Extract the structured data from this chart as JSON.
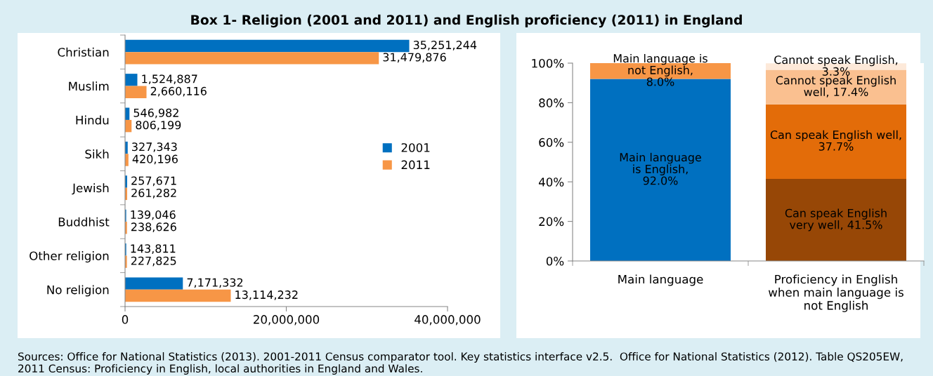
{
  "chart_data": [
    {
      "type": "bar",
      "orientation": "horizontal",
      "title": "Box 1- Religion (2001 and 2011) and English proficiency (2011) in England",
      "categories": [
        "Christian",
        "Muslim",
        "Hindu",
        "Sikh",
        "Jewish",
        "Buddhist",
        "Other religion",
        "No religion"
      ],
      "series": [
        {
          "name": "2001",
          "color": "#0070c0",
          "values": [
            35251244,
            1524887,
            546982,
            327343,
            257671,
            139046,
            143811,
            7171332
          ],
          "value_labels": [
            "35,251,244",
            "1,524,887",
            "546,982",
            "327,343",
            "257,671",
            "139,046",
            "143,811",
            "7,171,332"
          ]
        },
        {
          "name": "2011",
          "color": "#f79646",
          "values": [
            31479876,
            2660116,
            806199,
            420196,
            261282,
            238626,
            227825,
            13114232
          ],
          "value_labels": [
            "31,479,876",
            "2,660,116",
            "806,199",
            "420,196",
            "261,282",
            "238,626",
            "227,825",
            "13,114,232"
          ]
        }
      ],
      "xlim": [
        0,
        40000000
      ],
      "xticks": [
        0,
        {
          "value": 20000000,
          "label": "20,000,000"
        },
        {
          "value": 40000000,
          "label": "40,000,000"
        }
      ],
      "legend": "right",
      "grid": false
    },
    {
      "type": "bar",
      "stacked": true,
      "categories": [
        "Main language",
        "Proficiency in English\nwhen main language is\nnot English"
      ],
      "series": [
        {
          "color": "#0070c0",
          "values": [
            92.0,
            null
          ],
          "value_labels": [
            "Main language\nis English,\n92.0%",
            null
          ]
        },
        {
          "color": "#f79646",
          "values": [
            8.0,
            null
          ],
          "value_labels": [
            "Main language is\nnot English,\n8.0%",
            null
          ]
        },
        {
          "color": "#974706",
          "values": [
            null,
            41.5
          ],
          "value_labels": [
            null,
            "Can speak English\nvery well, 41.5%"
          ]
        },
        {
          "color": "#e36c09",
          "values": [
            null,
            37.7
          ],
          "value_labels": [
            null,
            "Can speak English well,\n37.7%"
          ]
        },
        {
          "color": "#fac090",
          "values": [
            null,
            17.4
          ],
          "value_labels": [
            null,
            "Cannot speak English\nwell, 17.4%"
          ]
        },
        {
          "color": "#fde9d9",
          "values": [
            null,
            3.3
          ],
          "value_labels": [
            null,
            "Cannot speak English,\n3.3%"
          ]
        }
      ],
      "ylim": [
        0,
        100
      ],
      "yticks": [
        {
          "value": 0,
          "label": "0%"
        },
        {
          "value": 20,
          "label": "20%"
        },
        {
          "value": 40,
          "label": "40%"
        },
        {
          "value": 60,
          "label": "60%"
        },
        {
          "value": 80,
          "label": "80%"
        },
        {
          "value": 100,
          "label": "100%"
        }
      ],
      "grid": false,
      "legend": false,
      "annotations": [
        "Sources: Office for National Statistics (2013). 2001-2011 Census comparator tool. Key statistics interface v2.5.  Office for National Statistics (2012). Table QS205EW, 2011 Census: Proficiency in English, local authorities in England and Wales."
      ]
    }
  ]
}
